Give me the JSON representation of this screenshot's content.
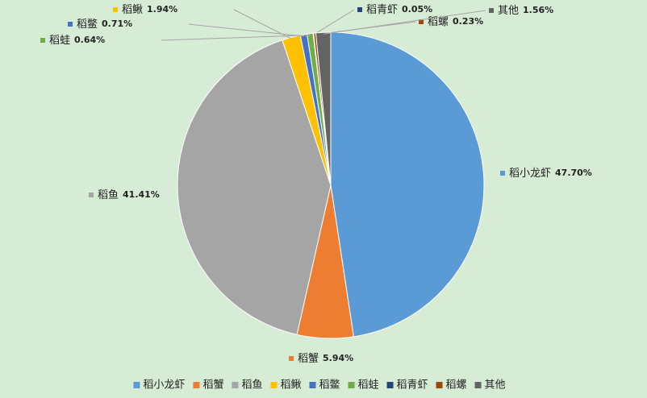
{
  "chart_data": {
    "type": "pie",
    "categories": [
      "稻小龙虾",
      "稻蟹",
      "稻鱼",
      "稻鳅",
      "稻鳖",
      "稻蛙",
      "稻青虾",
      "稻螺",
      "其他"
    ],
    "values": [
      47.7,
      5.94,
      41.41,
      1.94,
      0.71,
      0.64,
      0.05,
      0.23,
      1.56
    ],
    "value_labels": [
      "47.70%",
      "5.94%",
      "41.41%",
      "1.94%",
      "0.71%",
      "0.64%",
      "0.05%",
      "0.23%",
      "1.56%"
    ],
    "colors": [
      "#5b9bd5",
      "#ed7d31",
      "#a5a5a5",
      "#ffc000",
      "#4472c4",
      "#70ad47",
      "#264478",
      "#9e480e",
      "#636363"
    ],
    "legend": "bottom"
  }
}
